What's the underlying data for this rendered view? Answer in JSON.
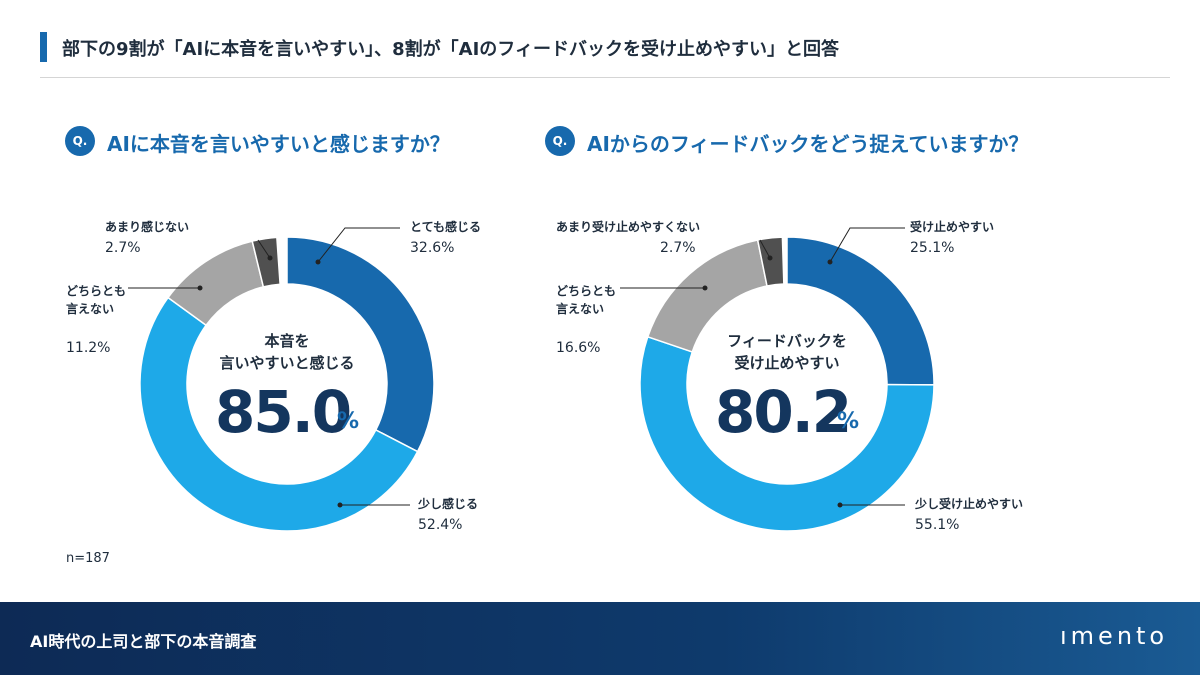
{
  "header": {
    "title": "部下の9割が「AIに本音を言いやすい」、8割が「AIのフィードバックを受け止めやすい」と回答"
  },
  "note": "n=187",
  "footer": {
    "title": "AI時代の上司と部下の本音調査",
    "logo": "ımento"
  },
  "chart_data": [
    {
      "type": "pie",
      "question_marker": "Q.",
      "title": "AIに本音を言いやすいと感じますか？",
      "center_label": "本音を\n言いやすいと感じる",
      "center_value": "85.0",
      "center_unit": "%",
      "categories": [
        "とても感じる",
        "少し感じる",
        "どちらとも\n言えない",
        "あまり感じない"
      ],
      "values": [
        32.6,
        52.4,
        11.2,
        2.7
      ],
      "value_labels": [
        "32.6%",
        "52.4%",
        "11.2%",
        "2.7%"
      ],
      "colors": [
        "#1769ad",
        "#1ea9e8",
        "#a5a5a5",
        "#505050"
      ]
    },
    {
      "type": "pie",
      "question_marker": "Q.",
      "title": "AIからのフィードバックをどう捉えていますか？",
      "center_label": "フィードバックを\n受け止めやすい",
      "center_value": "80.2",
      "center_unit": "%",
      "categories": [
        "受け止めやすい",
        "少し受け止めやすい",
        "どちらとも\n言えない",
        "あまり受け止めやすくない"
      ],
      "values": [
        25.1,
        55.1,
        16.6,
        2.7
      ],
      "value_labels": [
        "25.1%",
        "55.1%",
        "16.6%",
        "2.7%"
      ],
      "colors": [
        "#1769ad",
        "#1ea9e8",
        "#a5a5a5",
        "#505050"
      ]
    }
  ]
}
